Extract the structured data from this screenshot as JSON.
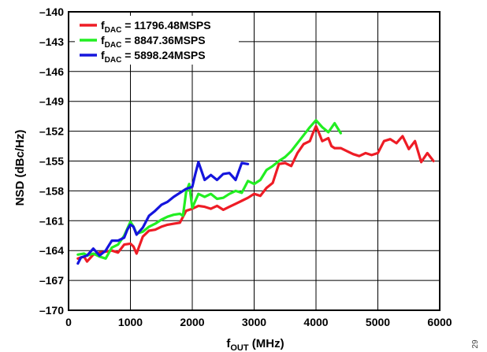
{
  "figure_id": "29",
  "chart_data": {
    "type": "line",
    "xlabel_main": "f",
    "xlabel_sub": "OUT",
    "xlabel_unit": " (MHz)",
    "ylabel": "NSD (dBc/Hz)",
    "xlim": [
      0,
      6000
    ],
    "ylim": [
      -170,
      -140
    ],
    "x_ticks": [
      0,
      1000,
      2000,
      3000,
      4000,
      5000,
      6000
    ],
    "x_tick_labels": [
      "0",
      "1000",
      "2000",
      "3000",
      "4000",
      "5000",
      "6000"
    ],
    "y_ticks": [
      -140,
      -143,
      -146,
      -149,
      -152,
      -155,
      -158,
      -161,
      -164,
      -167,
      -170
    ],
    "y_tick_labels": [
      "–140",
      "–143",
      "–146",
      "–149",
      "–152",
      "–155",
      "–158",
      "–161",
      "–164",
      "–167",
      "–170"
    ],
    "grid": true,
    "legend_position": "top-left",
    "series": [
      {
        "name_main": "f",
        "name_sub": "DAC",
        "name_value": " = 11796.48MSPS",
        "color": "#ee1c25",
        "x": [
          150,
          250,
          300,
          400,
          500,
          600,
          700,
          800,
          900,
          1000,
          1050,
          1100,
          1200,
          1300,
          1400,
          1500,
          1600,
          1700,
          1800,
          1900,
          2000,
          2100,
          2200,
          2300,
          2400,
          2500,
          2600,
          2700,
          2800,
          2900,
          3000,
          3100,
          3200,
          3300,
          3400,
          3500,
          3600,
          3700,
          3800,
          3900,
          3950,
          4000,
          4050,
          4100,
          4200,
          4250,
          4300,
          4400,
          4500,
          4600,
          4700,
          4800,
          4900,
          5000,
          5100,
          5200,
          5300,
          5400,
          5500,
          5600,
          5700,
          5800,
          5900
        ],
        "y": [
          -164.8,
          -164.6,
          -165.1,
          -164.4,
          -164.2,
          -164.1,
          -164.0,
          -164.2,
          -163.4,
          -163.3,
          -163.6,
          -164.3,
          -162.6,
          -162.0,
          -161.9,
          -161.6,
          -161.4,
          -161.3,
          -161.2,
          -160.0,
          -159.8,
          -159.5,
          -159.6,
          -159.8,
          -159.5,
          -159.9,
          -159.6,
          -159.3,
          -159.0,
          -158.7,
          -158.3,
          -158.5,
          -157.7,
          -157.2,
          -155.3,
          -155.2,
          -155.5,
          -154.2,
          -153.3,
          -153.0,
          -152.2,
          -151.5,
          -152.2,
          -153.0,
          -152.7,
          -153.5,
          -153.7,
          -153.7,
          -154.0,
          -154.3,
          -154.5,
          -154.2,
          -154.4,
          -154.2,
          -153.0,
          -152.8,
          -153.2,
          -152.5,
          -153.8,
          -153.0,
          -155.1,
          -154.2,
          -155.0
        ]
      },
      {
        "name_main": "f",
        "name_sub": "DAC",
        "name_value": " = 8847.36MSPS",
        "color": "#22ee22",
        "x": [
          150,
          250,
          300,
          400,
          500,
          600,
          700,
          800,
          900,
          1000,
          1050,
          1100,
          1200,
          1300,
          1400,
          1500,
          1600,
          1700,
          1800,
          1850,
          1900,
          1950,
          2000,
          2050,
          2100,
          2200,
          2300,
          2400,
          2500,
          2600,
          2700,
          2800,
          2900,
          3000,
          3100,
          3200,
          3300,
          3400,
          3500,
          3600,
          3700,
          3800,
          3900,
          4000,
          4100,
          4200,
          4300,
          4400
        ],
        "y": [
          -164.4,
          -164.3,
          -164.5,
          -164.3,
          -164.6,
          -164.8,
          -163.7,
          -163.4,
          -162.5,
          -161.1,
          -161.6,
          -162.3,
          -162.1,
          -161.6,
          -161.3,
          -160.9,
          -160.6,
          -160.4,
          -160.3,
          -160.5,
          -158.1,
          -157.3,
          -159.7,
          -159.0,
          -158.3,
          -158.6,
          -158.3,
          -158.8,
          -158.7,
          -158.3,
          -158.0,
          -158.2,
          -157.0,
          -157.3,
          -156.9,
          -155.9,
          -155.5,
          -155.0,
          -154.6,
          -154.0,
          -153.2,
          -152.4,
          -151.6,
          -150.9,
          -151.6,
          -152.1,
          -151.2,
          -152.2
        ]
      },
      {
        "name_main": "f",
        "name_sub": "DAC",
        "name_value": " = 5898.24MSPS",
        "color": "#1515dd",
        "x": [
          150,
          200,
          300,
          400,
          500,
          600,
          700,
          800,
          900,
          950,
          1000,
          1050,
          1100,
          1200,
          1300,
          1400,
          1500,
          1600,
          1700,
          1800,
          1900,
          2000,
          2050,
          2100,
          2200,
          2300,
          2400,
          2500,
          2600,
          2700,
          2800,
          2900
        ],
        "y": [
          -165.3,
          -164.7,
          -164.5,
          -163.8,
          -164.5,
          -164.0,
          -163.0,
          -163.0,
          -162.7,
          -161.9,
          -161.4,
          -161.6,
          -162.4,
          -161.7,
          -160.5,
          -160.0,
          -159.4,
          -159.1,
          -158.6,
          -158.2,
          -157.8,
          -157.6,
          -156.3,
          -155.1,
          -156.9,
          -156.4,
          -156.9,
          -156.3,
          -156.2,
          -156.9,
          -155.2,
          -155.3
        ]
      }
    ]
  }
}
